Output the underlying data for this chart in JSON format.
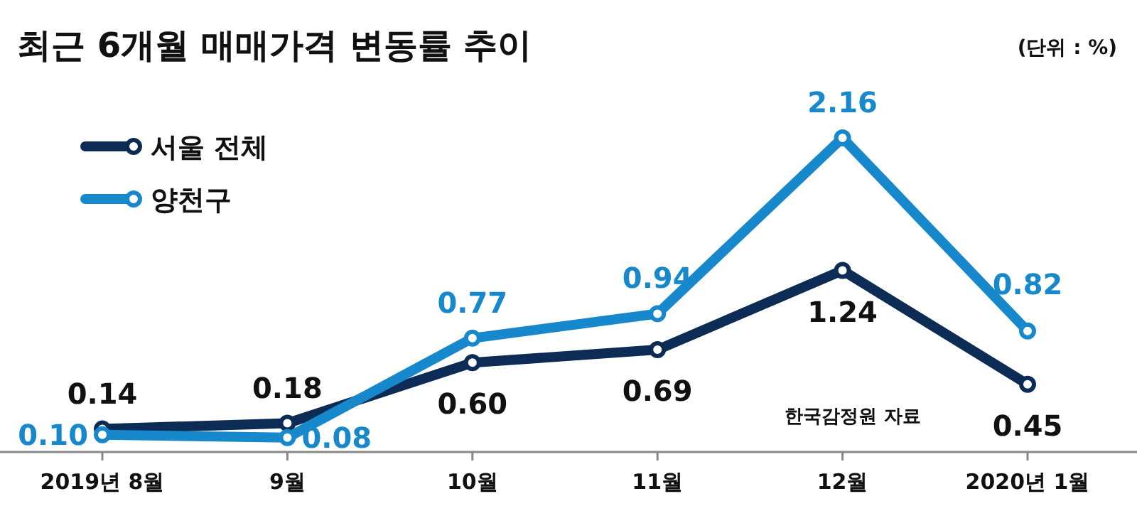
{
  "chart_data": {
    "type": "line",
    "title": "최근 6개월 매매가격 변동률 추이",
    "categories": [
      "2019년 8월",
      "9월",
      "10월",
      "11월",
      "12월",
      "2020년 1월"
    ],
    "series": [
      {
        "name": "서울 전체",
        "color": "#0c2c55",
        "values": [
          0.14,
          0.18,
          0.6,
          0.69,
          1.24,
          0.45
        ],
        "value_labels": [
          "0.14",
          "0.18",
          "0.60",
          "0.69",
          "1.24",
          "0.45"
        ]
      },
      {
        "name": "양천구",
        "color": "#1788cc",
        "values": [
          0.1,
          0.08,
          0.77,
          0.94,
          2.16,
          0.82
        ],
        "value_labels": [
          "0.10",
          "0.08",
          "0.77",
          "0.94",
          "2.16",
          "0.82"
        ]
      }
    ],
    "annotations": [
      "(단위 : %)",
      "한국감정원 자료"
    ],
    "legend": "top left",
    "marker": "circle",
    "line_style": "solid"
  }
}
